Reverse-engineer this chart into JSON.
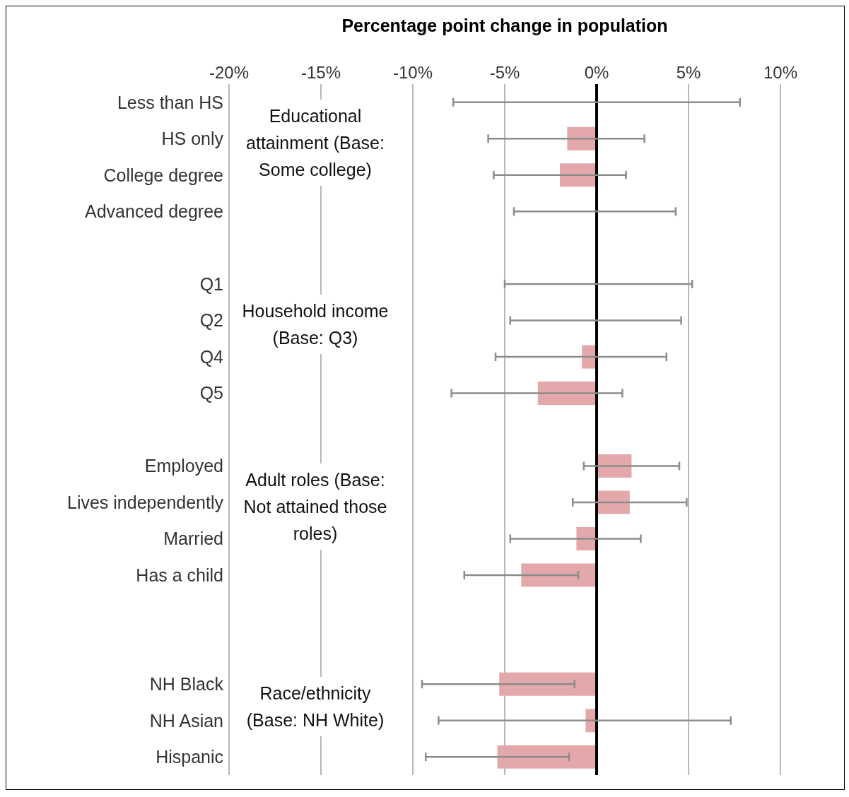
{
  "chart_data": {
    "type": "bar",
    "orientation": "horizontal",
    "xlabel": "Percentage point change in population",
    "categories": [
      "Less than HS",
      "HS only",
      "College degree",
      "Advanced degree",
      null,
      "Q1",
      "Q2",
      "Q4",
      "Q5",
      null,
      "Employed",
      "Lives independently",
      "Married",
      "Has a child",
      null,
      null,
      "NH Black",
      "NH Asian",
      "Hispanic"
    ],
    "values": [
      0,
      -1.6,
      -2.0,
      0,
      null,
      0,
      0,
      -0.8,
      -3.2,
      null,
      1.9,
      1.8,
      -1.1,
      -4.1,
      null,
      null,
      -5.3,
      -0.6,
      -5.4
    ],
    "errors": [
      [
        -7.8,
        7.8
      ],
      [
        -5.9,
        2.6
      ],
      [
        -5.6,
        1.6
      ],
      [
        -4.5,
        4.3
      ],
      null,
      [
        -5.0,
        5.2
      ],
      [
        -4.7,
        4.6
      ],
      [
        -5.5,
        3.8
      ],
      [
        -7.9,
        1.4
      ],
      null,
      [
        -0.7,
        4.5
      ],
      [
        -1.3,
        4.9
      ],
      [
        -4.7,
        2.4
      ],
      [
        -7.2,
        -1.0
      ],
      null,
      null,
      [
        -9.5,
        -1.2
      ],
      [
        -8.6,
        7.3
      ],
      [
        -9.3,
        -1.5
      ]
    ],
    "color": "#e3a8aa",
    "xlim": [
      -20,
      10
    ],
    "xticks": [
      {
        "value": -20,
        "label": "-20%"
      },
      {
        "value": -15,
        "label": "-15%"
      },
      {
        "value": -10,
        "label": "-10%"
      },
      {
        "value": -5,
        "label": "-5%"
      },
      {
        "value": 0,
        "label": "0%"
      },
      {
        "value": 5,
        "label": "5%"
      },
      {
        "value": 10,
        "label": "10%"
      }
    ],
    "grid": "x",
    "ref_lines": [
      {
        "axis": "x",
        "value": 0,
        "color": "#000000"
      }
    ],
    "annotations": [
      "Educational attainment (Base: Some college)",
      "Household income (Base: Q3)",
      "Adult roles (Base: Not attained those roles)",
      "Race/ethnicity (Base: NH White)"
    ]
  }
}
